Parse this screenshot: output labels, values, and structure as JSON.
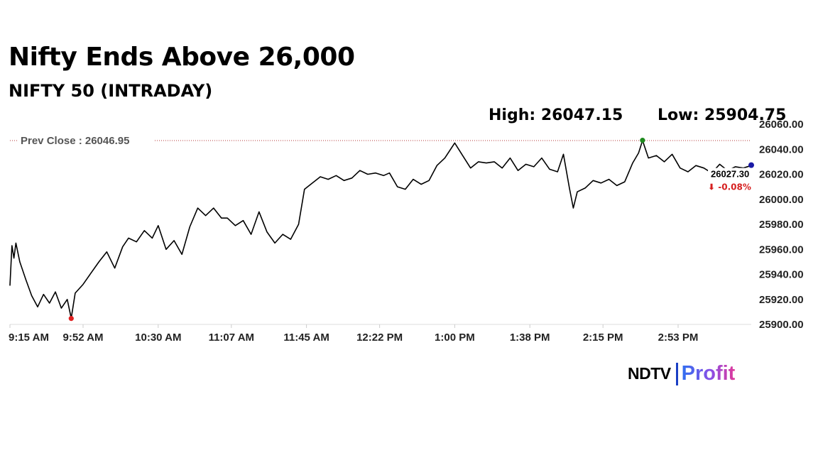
{
  "header": {
    "title": "Nifty Ends Above 26,000",
    "subtitle": "NIFTY 50 (INTRADAY)",
    "high_text": "High: 26047.15",
    "low_text": "Low: 25904.75"
  },
  "brand": {
    "left": "NDTV",
    "right": "Profit"
  },
  "colors": {
    "line": "#000000",
    "prev_close_line": "#b33a3a",
    "low_marker": "#e02020",
    "high_marker": "#1e8a1e",
    "last_marker": "#1a1aa6",
    "change_negative": "#d62020",
    "axis": "#dddddd"
  },
  "chart_data": {
    "type": "line",
    "title": "NIFTY 50 (INTRADAY)",
    "xlabel": "",
    "ylabel": "",
    "ylim": [
      25900,
      26060
    ],
    "y_ticks": [
      "25900.00",
      "25920.00",
      "25940.00",
      "25960.00",
      "25980.00",
      "26000.00",
      "26020.00",
      "26040.00",
      "26060.00"
    ],
    "x_ticks": [
      "9:15 AM",
      "9:52 AM",
      "10:30 AM",
      "11:07 AM",
      "11:45 AM",
      "12:22 PM",
      "1:00 PM",
      "1:38 PM",
      "2:15 PM",
      "2:53 PM"
    ],
    "grid": false,
    "prev_close": {
      "label": "Prev Close : 26046.95",
      "value": 26046.95
    },
    "high": {
      "time": "2:35 PM",
      "value": 26047.15
    },
    "low": {
      "time": "9:46 AM",
      "value": 25904.75
    },
    "last": {
      "price_label": "26027.30",
      "change_label": "⬇ -0.08%",
      "value": 26027.3
    },
    "series": [
      {
        "x": [
          "9:15 AM",
          "9:16 AM",
          "9:17 AM",
          "9:18 AM",
          "9:20 AM",
          "9:23 AM",
          "9:26 AM",
          "9:29 AM",
          "9:32 AM",
          "9:35 AM",
          "9:38 AM",
          "9:41 AM",
          "9:44 AM",
          "9:46 AM",
          "9:48 AM",
          "9:52 AM",
          "9:56 AM",
          "10:00 AM",
          "10:04 AM",
          "10:08 AM",
          "10:12 AM",
          "10:15 AM",
          "10:19 AM",
          "10:23 AM",
          "10:27 AM",
          "10:30 AM",
          "10:34 AM",
          "10:38 AM",
          "10:42 AM",
          "10:46 AM",
          "10:50 AM",
          "10:54 AM",
          "10:58 AM",
          "11:02 AM",
          "11:05 AM",
          "11:09 AM",
          "11:13 AM",
          "11:17 AM",
          "11:21 AM",
          "11:25 AM",
          "11:29 AM",
          "11:33 AM",
          "11:37 AM",
          "11:41 AM",
          "11:44 AM",
          "11:48 AM",
          "11:52 AM",
          "11:56 AM",
          "12:00 PM",
          "12:04 PM",
          "12:08 PM",
          "12:12 PM",
          "12:16 PM",
          "12:20 PM",
          "12:24 PM",
          "12:27 PM",
          "12:31 PM",
          "12:35 PM",
          "12:39 PM",
          "12:43 PM",
          "12:47 PM",
          "12:51 PM",
          "12:55 PM",
          "1:00 PM",
          "1:04 PM",
          "1:08 PM",
          "1:12 PM",
          "1:16 PM",
          "1:20 PM",
          "1:24 PM",
          "1:28 PM",
          "1:32 PM",
          "1:36 PM",
          "1:40 PM",
          "1:44 PM",
          "1:48 PM",
          "1:52 PM",
          "1:55 PM",
          "1:58 PM",
          "2:00 PM",
          "2:02 PM",
          "2:06 PM",
          "2:10 PM",
          "2:14 PM",
          "2:18 PM",
          "2:22 PM",
          "2:26 PM",
          "2:30 PM",
          "2:33 PM",
          "2:35 PM",
          "2:38 PM",
          "2:42 PM",
          "2:46 PM",
          "2:50 PM",
          "2:54 PM",
          "2:58 PM",
          "3:02 PM",
          "3:06 PM",
          "3:10 PM",
          "3:14 PM",
          "3:18 PM",
          "3:22 PM",
          "3:26 PM",
          "3:30 PM"
        ],
        "y": [
          25931,
          25963,
          25953,
          25965,
          25950,
          25936,
          25923,
          25914,
          25924,
          25917,
          25926,
          25913,
          25920,
          25905,
          25925,
          25932,
          25941,
          25950,
          25958,
          25945,
          25962,
          25969,
          25966,
          25975,
          25969,
          25979,
          25960,
          25967,
          25956,
          25978,
          25993,
          25987,
          25993,
          25985,
          25985,
          25979,
          25983,
          25972,
          25990,
          25974,
          25965,
          25972,
          25968,
          25980,
          26008,
          26013,
          26018,
          26016,
          26019,
          26015,
          26017,
          26023,
          26020,
          26021,
          26019,
          26021,
          26010,
          26008,
          26016,
          26012,
          26015,
          26027,
          26033,
          26045,
          26035,
          26025,
          26030,
          26029,
          26030,
          26025,
          26033,
          26023,
          26028,
          26026,
          26033,
          26024,
          26022,
          26036,
          26009,
          25993,
          26006,
          26009,
          26015,
          26013,
          26016,
          26011,
          26014,
          26029,
          26037,
          26047,
          26033,
          26035,
          26030,
          26036,
          26025,
          26022,
          26027,
          26025,
          26021,
          26028,
          26023,
          26026,
          26025,
          26027
        ]
      }
    ]
  }
}
